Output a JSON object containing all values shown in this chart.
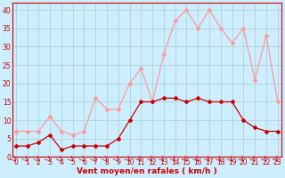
{
  "hours": [
    0,
    1,
    2,
    3,
    4,
    5,
    6,
    7,
    8,
    9,
    10,
    11,
    12,
    13,
    14,
    15,
    16,
    17,
    18,
    19,
    20,
    21,
    22,
    23
  ],
  "wind_mean": [
    3,
    3,
    4,
    6,
    2,
    3,
    3,
    3,
    3,
    5,
    10,
    15,
    15,
    16,
    16,
    15,
    16,
    15,
    15,
    15,
    10,
    8,
    7,
    7
  ],
  "wind_gust": [
    7,
    7,
    7,
    11,
    7,
    6,
    7,
    16,
    13,
    13,
    20,
    24,
    15,
    28,
    37,
    40,
    35,
    40,
    35,
    31,
    35,
    21,
    33,
    15
  ],
  "ylabel_ticks": [
    0,
    5,
    10,
    15,
    20,
    25,
    30,
    35,
    40
  ],
  "bg_color": "#cceeff",
  "grid_color": "#aacccc",
  "line_color_mean": "#cc0000",
  "line_color_gust": "#ff9999",
  "marker": "D",
  "marker_size": 2,
  "linewidth": 0.9,
  "xlabel": "Vent moyen/en rafales ( km/h )",
  "ylim": [
    0,
    42
  ],
  "xlim": [
    -0.3,
    23.3
  ],
  "tick_fontsize": 5.5,
  "xlabel_fontsize": 6.5
}
